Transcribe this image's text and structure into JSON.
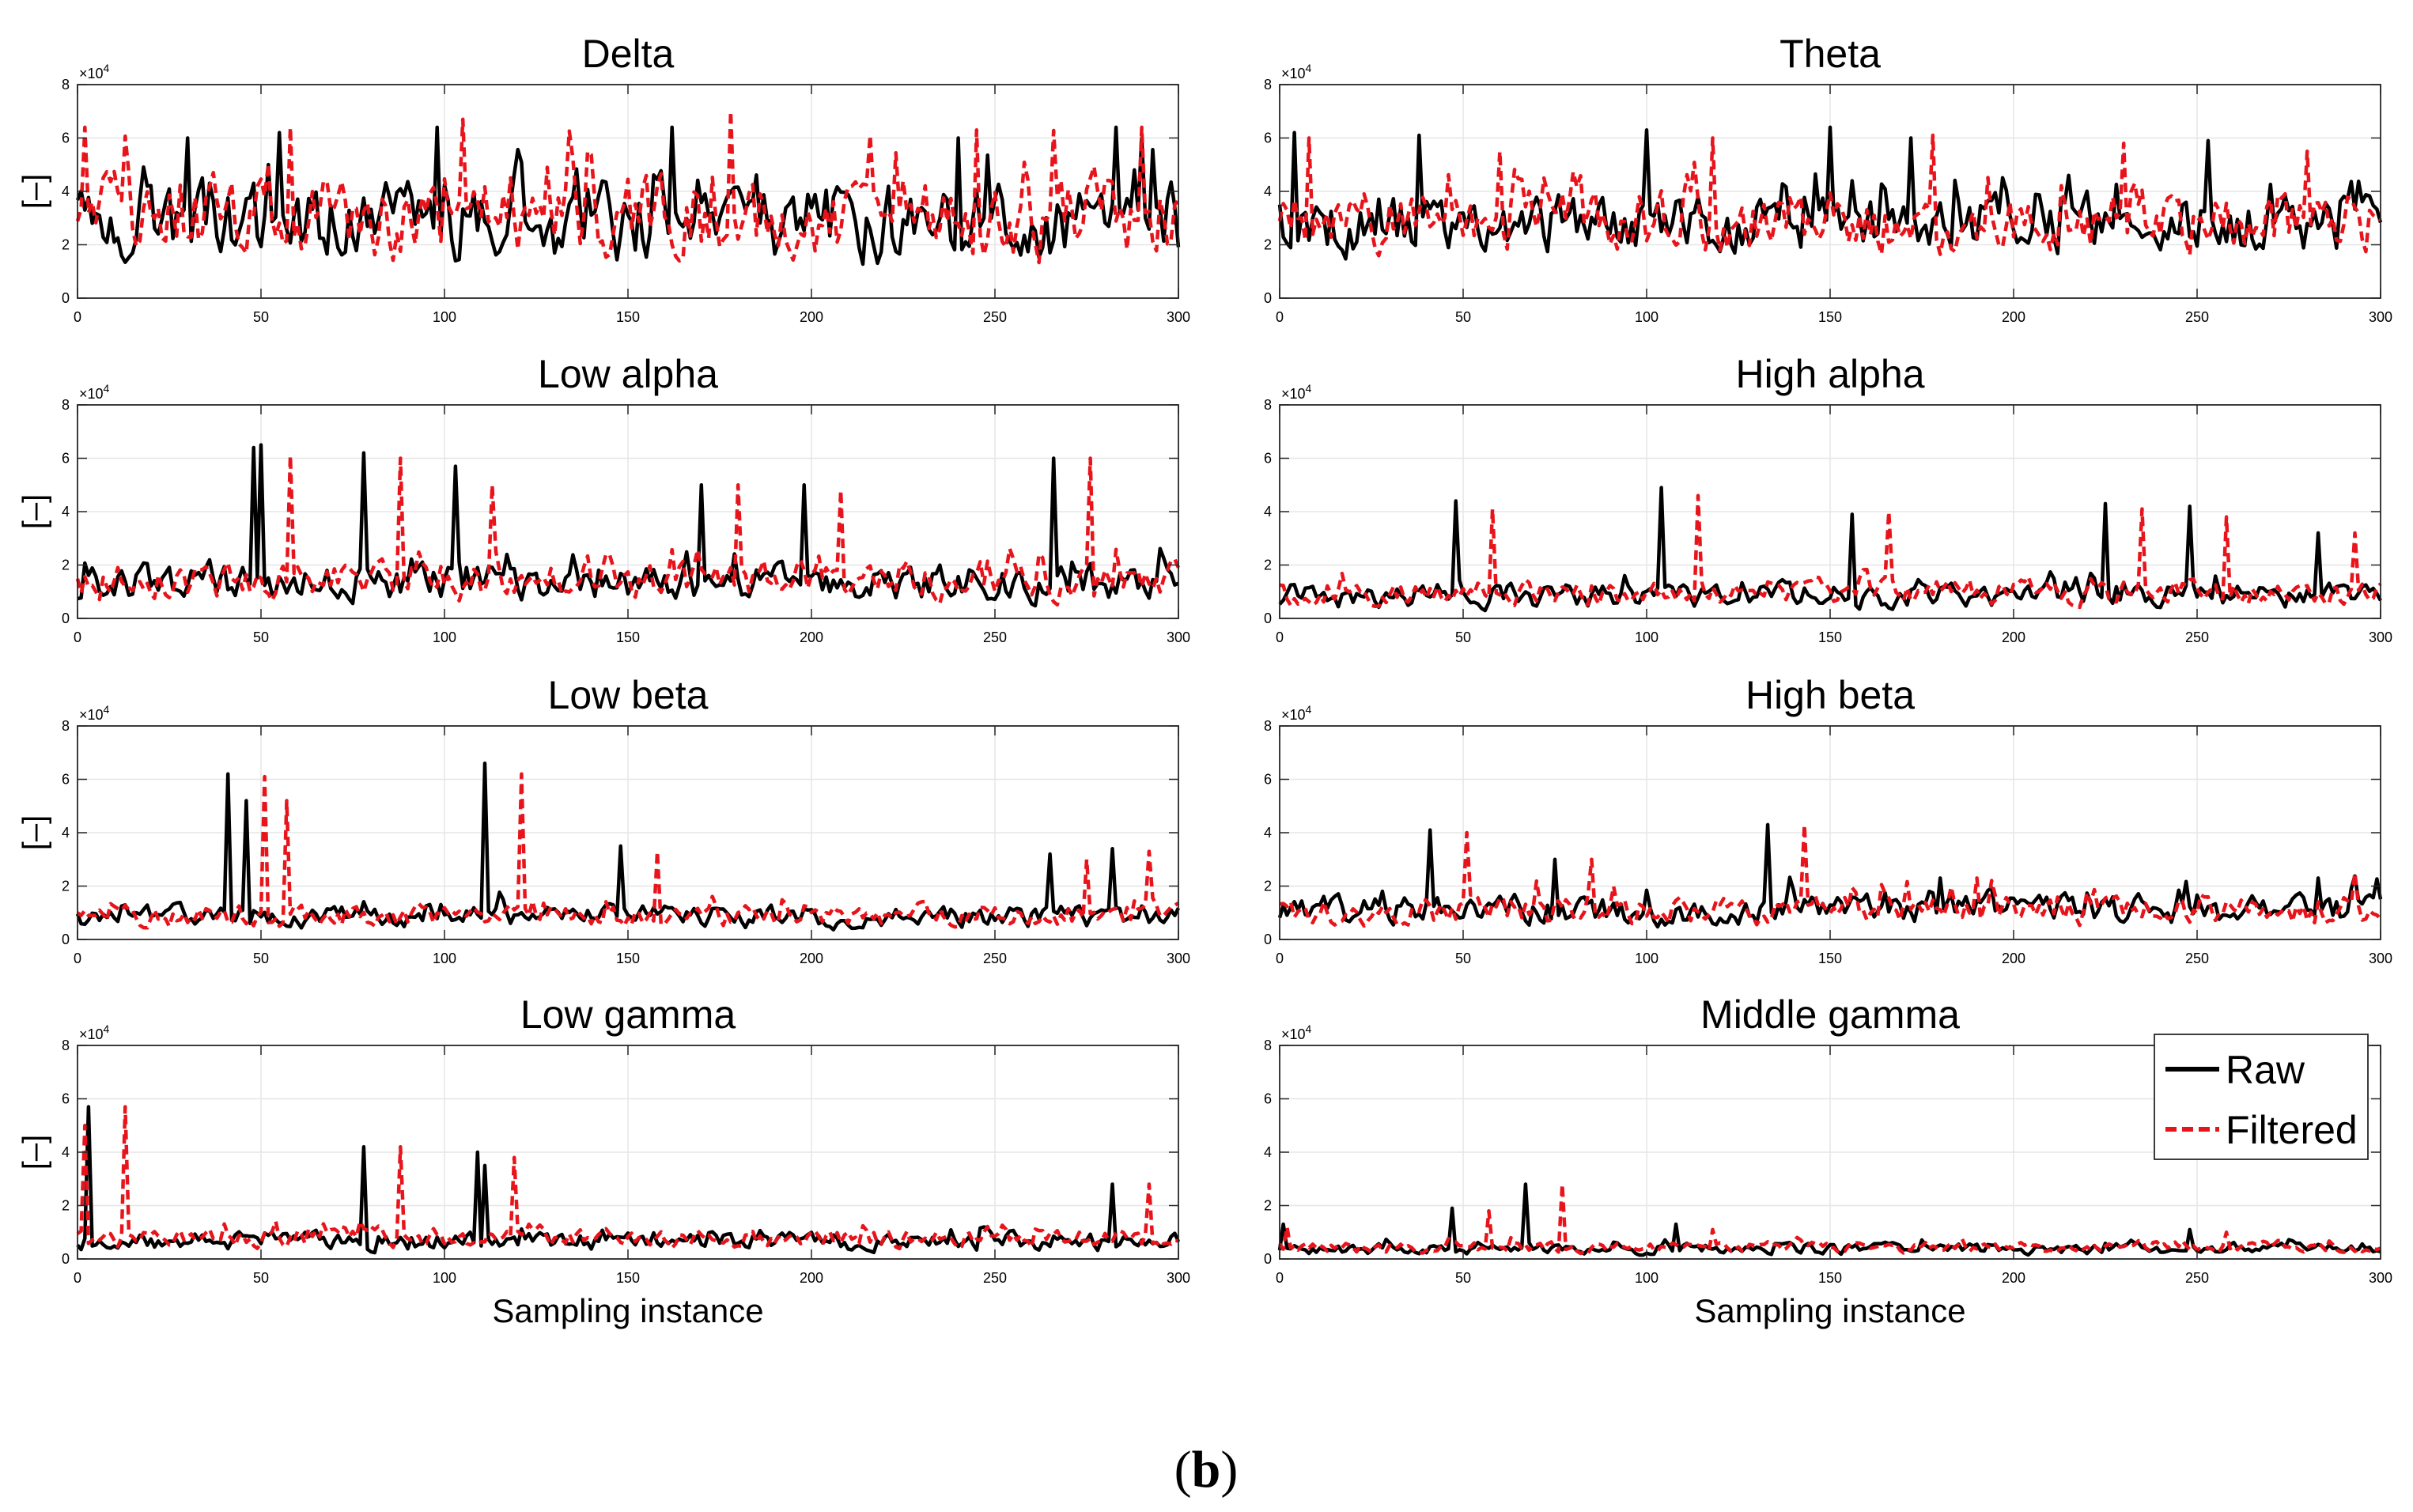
{
  "caption": {
    "open": "(",
    "letter": "b",
    "close": ")"
  },
  "chart_data": [
    {
      "type": "line",
      "title": "Delta",
      "ylabel": "[–]",
      "y_multiplier": "×10",
      "y_exponent": "4",
      "xlabel": "",
      "x": {
        "min": 0,
        "max": 300,
        "ticks": [
          0,
          50,
          100,
          150,
          200,
          250,
          300
        ]
      },
      "ylim": [
        0,
        8
      ],
      "yticks": [
        0,
        2,
        4,
        6,
        8
      ],
      "grid": true,
      "series": [
        {
          "name": "Raw",
          "color": "#000000",
          "style": "solid",
          "level": 2.6,
          "spread": 2.2,
          "peaks": [
            [
              30,
              6
            ],
            [
              55,
              6.2
            ],
            [
              98,
              6.4
            ],
            [
              162,
              6.4
            ],
            [
              240,
              6
            ],
            [
              283,
              6.4
            ],
            [
              290,
              6
            ]
          ]
        },
        {
          "name": "Filtered",
          "color": "#e8141b",
          "style": "dashed",
          "level": 2.8,
          "spread": 2.3,
          "peaks": [
            [
              2,
              6.4
            ],
            [
              58,
              6.4
            ],
            [
              105,
              6.7
            ],
            [
              178,
              7
            ],
            [
              245,
              6.3
            ],
            [
              290,
              6.4
            ]
          ]
        }
      ]
    },
    {
      "type": "line",
      "title": "Theta",
      "ylabel": "",
      "y_multiplier": "×10",
      "y_exponent": "4",
      "xlabel": "",
      "x": {
        "min": 0,
        "max": 300,
        "ticks": [
          0,
          50,
          100,
          150,
          200,
          250,
          300
        ]
      },
      "ylim": [
        0,
        8
      ],
      "yticks": [
        0,
        2,
        4,
        6,
        8
      ],
      "grid": true,
      "series": [
        {
          "name": "Raw",
          "color": "#000000",
          "style": "solid",
          "level": 2.6,
          "spread": 1.6,
          "peaks": [
            [
              4,
              6.2
            ],
            [
              38,
              6.1
            ],
            [
              100,
              6.3
            ],
            [
              150,
              6.4
            ],
            [
              172,
              6
            ],
            [
              253,
              5.9
            ]
          ]
        },
        {
          "name": "Filtered",
          "color": "#e8141b",
          "style": "dashed",
          "level": 2.7,
          "spread": 1.7,
          "peaks": [
            [
              8,
              6
            ],
            [
              60,
              5.5
            ],
            [
              118,
              6
            ],
            [
              178,
              6.1
            ],
            [
              230,
              5.8
            ],
            [
              280,
              5.5
            ]
          ]
        }
      ]
    },
    {
      "type": "line",
      "title": "Low alpha",
      "ylabel": "[–]",
      "y_multiplier": "×10",
      "y_exponent": "4",
      "xlabel": "",
      "x": {
        "min": 0,
        "max": 300,
        "ticks": [
          0,
          50,
          100,
          150,
          200,
          250,
          300
        ]
      },
      "ylim": [
        0,
        8
      ],
      "yticks": [
        0,
        2,
        4,
        6,
        8
      ],
      "grid": true,
      "series": [
        {
          "name": "Raw",
          "color": "#000000",
          "style": "solid",
          "level": 1.2,
          "spread": 1.0,
          "peaks": [
            [
              48,
              6.4
            ],
            [
              50,
              6.5
            ],
            [
              78,
              6.2
            ],
            [
              103,
              5.7
            ],
            [
              170,
              5
            ],
            [
              198,
              5
            ],
            [
              266,
              6
            ]
          ]
        },
        {
          "name": "Filtered",
          "color": "#e8141b",
          "style": "dashed",
          "level": 1.3,
          "spread": 1.0,
          "peaks": [
            [
              58,
              6.1
            ],
            [
              88,
              6
            ],
            [
              113,
              5
            ],
            [
              180,
              5
            ],
            [
              208,
              4.8
            ],
            [
              276,
              6
            ]
          ]
        }
      ]
    },
    {
      "type": "line",
      "title": "High alpha",
      "ylabel": "",
      "y_multiplier": "×10",
      "y_exponent": "4",
      "xlabel": "",
      "x": {
        "min": 0,
        "max": 300,
        "ticks": [
          0,
          50,
          100,
          150,
          200,
          250,
          300
        ]
      },
      "ylim": [
        0,
        8
      ],
      "yticks": [
        0,
        2,
        4,
        6,
        8
      ],
      "grid": true,
      "series": [
        {
          "name": "Raw",
          "color": "#000000",
          "style": "solid",
          "level": 0.8,
          "spread": 0.7,
          "peaks": [
            [
              48,
              4.4
            ],
            [
              104,
              4.9
            ],
            [
              156,
              3.9
            ],
            [
              225,
              4.3
            ],
            [
              248,
              4.2
            ],
            [
              283,
              3.2
            ]
          ]
        },
        {
          "name": "Filtered",
          "color": "#e8141b",
          "style": "dashed",
          "level": 0.9,
          "spread": 0.7,
          "peaks": [
            [
              58,
              4.1
            ],
            [
              114,
              4.6
            ],
            [
              166,
              4
            ],
            [
              235,
              4.1
            ],
            [
              258,
              3.8
            ],
            [
              293,
              3.2
            ]
          ]
        }
      ]
    },
    {
      "type": "line",
      "title": "Low beta",
      "ylabel": "[–]",
      "y_multiplier": "×10",
      "y_exponent": "4",
      "xlabel": "",
      "x": {
        "min": 0,
        "max": 300,
        "ticks": [
          0,
          50,
          100,
          150,
          200,
          250,
          300
        ]
      },
      "ylim": [
        0,
        8
      ],
      "yticks": [
        0,
        2,
        4,
        6,
        8
      ],
      "grid": true,
      "series": [
        {
          "name": "Raw",
          "color": "#000000",
          "style": "solid",
          "level": 0.8,
          "spread": 0.6,
          "peaks": [
            [
              41,
              6.2
            ],
            [
              46,
              5.2
            ],
            [
              111,
              6.6
            ],
            [
              148,
              3.5
            ],
            [
              265,
              3.2
            ],
            [
              282,
              3.4
            ]
          ]
        },
        {
          "name": "Filtered",
          "color": "#e8141b",
          "style": "dashed",
          "level": 0.8,
          "spread": 0.6,
          "peaks": [
            [
              51,
              6.1
            ],
            [
              57,
              5.2
            ],
            [
              121,
              6.2
            ],
            [
              158,
              3.3
            ],
            [
              275,
              3
            ],
            [
              292,
              3.3
            ]
          ]
        }
      ]
    },
    {
      "type": "line",
      "title": "High beta",
      "ylabel": "",
      "y_multiplier": "×10",
      "y_exponent": "4",
      "xlabel": "",
      "x": {
        "min": 0,
        "max": 300,
        "ticks": [
          0,
          50,
          100,
          150,
          200,
          250,
          300
        ]
      },
      "ylim": [
        0,
        8
      ],
      "yticks": [
        0,
        2,
        4,
        6,
        8
      ],
      "grid": true,
      "series": [
        {
          "name": "Raw",
          "color": "#000000",
          "style": "solid",
          "level": 1.0,
          "spread": 0.8,
          "peaks": [
            [
              41,
              4.1
            ],
            [
              75,
              3
            ],
            [
              133,
              4.3
            ],
            [
              180,
              2.3
            ],
            [
              283,
              2.3
            ]
          ]
        },
        {
          "name": "Filtered",
          "color": "#e8141b",
          "style": "dashed",
          "level": 1.0,
          "spread": 0.8,
          "peaks": [
            [
              51,
              4
            ],
            [
              85,
              3
            ],
            [
              143,
              4.3
            ],
            [
              190,
              2.3
            ],
            [
              293,
              2.5
            ]
          ]
        }
      ]
    },
    {
      "type": "line",
      "title": "Low gamma",
      "ylabel": "[–]",
      "y_multiplier": "×10",
      "y_exponent": "4",
      "xlabel": "Sampling instance",
      "x": {
        "min": 0,
        "max": 300,
        "ticks": [
          0,
          50,
          100,
          150,
          200,
          250,
          300
        ]
      },
      "ylim": [
        0,
        8
      ],
      "yticks": [
        0,
        2,
        4,
        6,
        8
      ],
      "grid": true,
      "series": [
        {
          "name": "Raw",
          "color": "#000000",
          "style": "solid",
          "level": 0.6,
          "spread": 0.5,
          "peaks": [
            [
              3,
              5.7
            ],
            [
              78,
              4.2
            ],
            [
              109,
              4
            ],
            [
              111,
              3.5
            ],
            [
              282,
              2.8
            ]
          ]
        },
        {
          "name": "Filtered",
          "color": "#e8141b",
          "style": "dashed",
          "level": 0.7,
          "spread": 0.5,
          "peaks": [
            [
              2,
              5
            ],
            [
              13,
              5.7
            ],
            [
              88,
              4.2
            ],
            [
              119,
              3.8
            ],
            [
              292,
              2.8
            ]
          ]
        }
      ]
    },
    {
      "type": "line",
      "title": "Middle gamma",
      "ylabel": "",
      "y_multiplier": "×10",
      "y_exponent": "4",
      "xlabel": "Sampling instance",
      "x": {
        "min": 0,
        "max": 300,
        "ticks": [
          0,
          50,
          100,
          150,
          200,
          250,
          300
        ]
      },
      "ylim": [
        0,
        8
      ],
      "yticks": [
        0,
        2,
        4,
        6,
        8
      ],
      "grid": true,
      "series": [
        {
          "name": "Raw",
          "color": "#000000",
          "style": "solid",
          "level": 0.35,
          "spread": 0.3,
          "peaks": [
            [
              1,
              1.3
            ],
            [
              47,
              1.9
            ],
            [
              67,
              2.8
            ],
            [
              108,
              1.3
            ],
            [
              248,
              1.1
            ]
          ]
        },
        {
          "name": "Filtered",
          "color": "#e8141b",
          "style": "dashed",
          "level": 0.4,
          "spread": 0.3,
          "peaks": [
            [
              2,
              1.2
            ],
            [
              57,
              1.8
            ],
            [
              77,
              2.8
            ],
            [
              118,
              1.1
            ],
            [
              258,
              1
            ]
          ]
        }
      ]
    }
  ],
  "legend": {
    "placement": "top-right of Middle gamma panel",
    "entries": [
      {
        "label": "Raw",
        "color": "#000000",
        "style": "solid"
      },
      {
        "label": "Filtered",
        "color": "#e8141b",
        "style": "dashed"
      }
    ]
  }
}
